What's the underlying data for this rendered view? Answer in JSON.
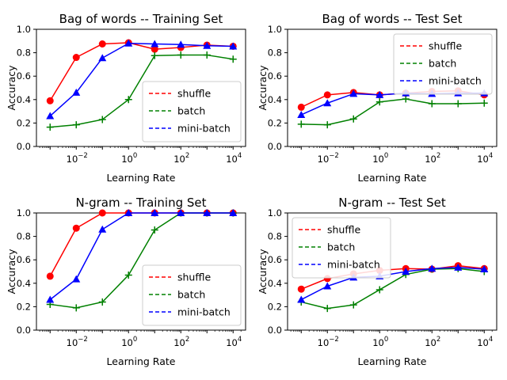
{
  "chart_data": [
    {
      "type": "line",
      "title": "Bag of words -- Training Set",
      "xlabel": "Learning Rate",
      "ylabel": "Accuracy",
      "xscale": "log",
      "xlim": [
        0.0003,
        30000
      ],
      "ylim": [
        0.0,
        1.0
      ],
      "xticks": [
        0.01,
        1,
        100,
        10000
      ],
      "xtick_labels": [
        [
          "10",
          "−2"
        ],
        [
          "10",
          "0"
        ],
        [
          "10",
          "2"
        ],
        [
          "10",
          "4"
        ]
      ],
      "yticks": [
        0.0,
        0.2,
        0.4,
        0.6,
        0.8,
        1.0
      ],
      "ytick_labels": [
        "0.0",
        "0.2",
        "0.4",
        "0.6",
        "0.8",
        "1.0"
      ],
      "grid": false,
      "legend_position": "lower-right",
      "x": [
        0.001,
        0.01,
        0.1,
        1,
        10,
        100,
        1000,
        10000
      ],
      "series": [
        {
          "name": "shuffle",
          "color": "#ff0000",
          "marker": "circle",
          "values": [
            0.39,
            0.76,
            0.875,
            0.885,
            0.83,
            0.845,
            0.865,
            0.855
          ]
        },
        {
          "name": "batch",
          "color": "#008000",
          "marker": "plus",
          "values": [
            0.165,
            0.185,
            0.23,
            0.4,
            0.775,
            0.78,
            0.78,
            0.745
          ]
        },
        {
          "name": "mini-batch",
          "color": "#0000ff",
          "marker": "triangle",
          "values": [
            0.26,
            0.46,
            0.755,
            0.88,
            0.875,
            0.87,
            0.86,
            0.855
          ]
        }
      ]
    },
    {
      "type": "line",
      "title": "Bag of words -- Test Set",
      "xlabel": "Learning Rate",
      "ylabel": "Accuracy",
      "xscale": "log",
      "xlim": [
        0.0003,
        30000
      ],
      "ylim": [
        0.0,
        1.0
      ],
      "xticks": [
        0.01,
        1,
        100,
        10000
      ],
      "xtick_labels": [
        [
          "10",
          "−2"
        ],
        [
          "10",
          "0"
        ],
        [
          "10",
          "2"
        ],
        [
          "10",
          "4"
        ]
      ],
      "yticks": [
        0.0,
        0.2,
        0.4,
        0.6,
        0.8,
        1.0
      ],
      "ytick_labels": [
        "0.0",
        "0.2",
        "0.4",
        "0.6",
        "0.8",
        "1.0"
      ],
      "grid": false,
      "legend_position": "upper-right",
      "x": [
        0.001,
        0.01,
        0.1,
        1,
        10,
        100,
        1000,
        10000
      ],
      "series": [
        {
          "name": "shuffle",
          "color": "#ff0000",
          "marker": "circle",
          "values": [
            0.335,
            0.44,
            0.46,
            0.44,
            0.455,
            0.47,
            0.475,
            0.44
          ]
        },
        {
          "name": "batch",
          "color": "#008000",
          "marker": "plus",
          "values": [
            0.19,
            0.185,
            0.235,
            0.38,
            0.405,
            0.365,
            0.365,
            0.37
          ]
        },
        {
          "name": "mini-batch",
          "color": "#0000ff",
          "marker": "triangle",
          "values": [
            0.27,
            0.37,
            0.45,
            0.44,
            0.455,
            0.45,
            0.455,
            0.455
          ]
        }
      ]
    },
    {
      "type": "line",
      "title": "N-gram -- Training Set",
      "xlabel": "Learning Rate",
      "ylabel": "Accuracy",
      "xscale": "log",
      "xlim": [
        0.0003,
        30000
      ],
      "ylim": [
        0.0,
        1.0
      ],
      "xticks": [
        0.01,
        1,
        100,
        10000
      ],
      "xtick_labels": [
        [
          "10",
          "−2"
        ],
        [
          "10",
          "0"
        ],
        [
          "10",
          "2"
        ],
        [
          "10",
          "4"
        ]
      ],
      "yticks": [
        0.0,
        0.2,
        0.4,
        0.6,
        0.8,
        1.0
      ],
      "ytick_labels": [
        "0.0",
        "0.2",
        "0.4",
        "0.6",
        "0.8",
        "1.0"
      ],
      "grid": false,
      "legend_position": "lower-right",
      "x": [
        0.001,
        0.01,
        0.1,
        1,
        10,
        100,
        1000,
        10000
      ],
      "series": [
        {
          "name": "shuffle",
          "color": "#ff0000",
          "marker": "circle",
          "values": [
            0.46,
            0.87,
            1.0,
            1.0,
            1.0,
            1.0,
            1.0,
            1.0
          ]
        },
        {
          "name": "batch",
          "color": "#008000",
          "marker": "plus",
          "values": [
            0.22,
            0.19,
            0.24,
            0.47,
            0.855,
            1.0,
            1.0,
            1.0
          ]
        },
        {
          "name": "mini-batch",
          "color": "#0000ff",
          "marker": "triangle",
          "values": [
            0.26,
            0.435,
            0.86,
            1.0,
            1.0,
            1.0,
            1.0,
            1.0
          ]
        }
      ]
    },
    {
      "type": "line",
      "title": "N-gram -- Test Set",
      "xlabel": "Learning Rate",
      "ylabel": "Accuracy",
      "xscale": "log",
      "xlim": [
        0.0003,
        30000
      ],
      "ylim": [
        0.0,
        1.0
      ],
      "xticks": [
        0.01,
        1,
        100,
        10000
      ],
      "xtick_labels": [
        [
          "10",
          "−2"
        ],
        [
          "10",
          "0"
        ],
        [
          "10",
          "2"
        ],
        [
          "10",
          "4"
        ]
      ],
      "yticks": [
        0.0,
        0.2,
        0.4,
        0.6,
        0.8,
        1.0
      ],
      "ytick_labels": [
        "0.0",
        "0.2",
        "0.4",
        "0.6",
        "0.8",
        "1.0"
      ],
      "grid": false,
      "legend_position": "upper-left",
      "x": [
        0.001,
        0.01,
        0.1,
        1,
        10,
        100,
        1000,
        10000
      ],
      "series": [
        {
          "name": "shuffle",
          "color": "#ff0000",
          "marker": "circle",
          "values": [
            0.35,
            0.44,
            0.48,
            0.51,
            0.525,
            0.52,
            0.55,
            0.525
          ]
        },
        {
          "name": "batch",
          "color": "#008000",
          "marker": "plus",
          "values": [
            0.24,
            0.185,
            0.215,
            0.345,
            0.475,
            0.52,
            0.525,
            0.5
          ]
        },
        {
          "name": "mini-batch",
          "color": "#0000ff",
          "marker": "triangle",
          "values": [
            0.26,
            0.375,
            0.45,
            0.46,
            0.5,
            0.525,
            0.535,
            0.52
          ]
        }
      ]
    }
  ]
}
